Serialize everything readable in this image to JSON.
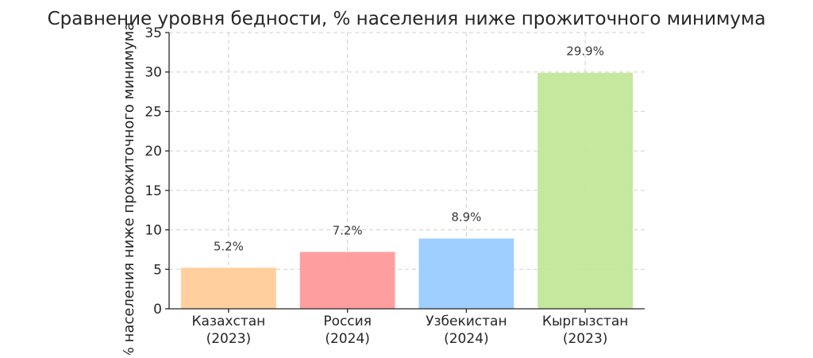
{
  "chart_data": {
    "type": "bar",
    "title": "Сравнение уровня бедности, % населения ниже прожиточного минимума",
    "xlabel": "",
    "ylabel": "% населения ниже прожиточного минимума",
    "categories": [
      [
        "Казахстан",
        "(2023)"
      ],
      [
        "Россия",
        "(2024)"
      ],
      [
        "Узбекистан",
        "(2024)"
      ],
      [
        "Кыргызстан",
        "(2023)"
      ]
    ],
    "values": [
      5.2,
      7.2,
      8.9,
      29.9
    ],
    "data_labels": [
      "5.2%",
      "7.2%",
      "8.9%",
      "29.9%"
    ],
    "colors": [
      "#ffcc99",
      "#ff9999",
      "#99ccff",
      "#c2e699"
    ],
    "ylim": [
      0,
      35
    ],
    "yticks": [
      0,
      5,
      10,
      15,
      20,
      25,
      30,
      35
    ],
    "grid": true,
    "legend": "none"
  }
}
